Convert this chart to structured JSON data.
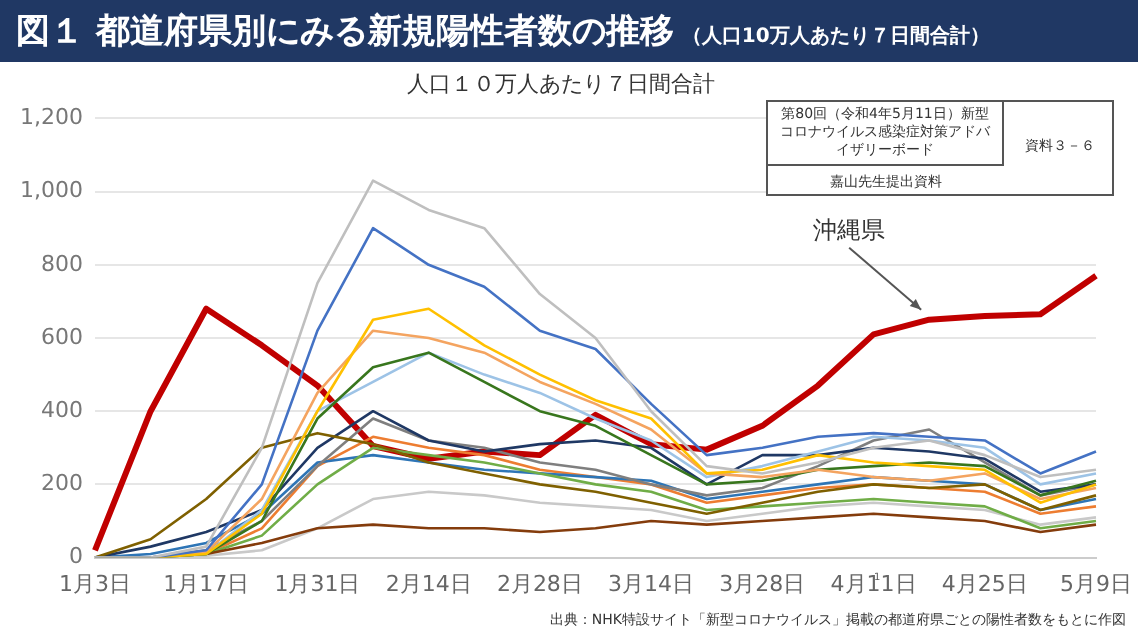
{
  "chart_data": {
    "type": "line",
    "title": "図１ 都道府県別にみる新規陽性者数の推移",
    "subtitle": "（人口10万人あたり７日間合計）",
    "annotations": [
      "人口１０万人あたり７日間合計",
      "第80回（令和4年5月11日）新型コロナウイルス感染症対策アドバイザリーボード",
      "資料３－６",
      "嘉山先生提出資料",
      "出典：NHK特設サイト「新型コロナウイルス」掲載の都道府県ごとの陽性者数をもとに作図",
      "1"
    ],
    "categories": [
      "1月3日",
      null,
      "1月17日",
      null,
      "1月31日",
      null,
      "2月14日",
      null,
      "2月28日",
      null,
      "3月14日",
      null,
      "3月28日",
      null,
      "4月11日",
      null,
      "4月25日",
      null,
      "5月9日"
    ],
    "ylim": [
      0,
      1200
    ],
    "yticks": [
      0,
      200,
      400,
      600,
      800,
      {
        "value": 1000,
        "label": "1,000"
      },
      {
        "value": 1200,
        "label": "1,200"
      }
    ],
    "grid": "y",
    "legend": false,
    "marker": "none",
    "line_style": "solid",
    "series": [
      {
        "color": "#bfbfbf",
        "values": [
          0,
          0,
          30,
          300,
          750,
          1030,
          950,
          900,
          720,
          600,
          400,
          250,
          230,
          260,
          300,
          320,
          280,
          220,
          240
        ]
      },
      {
        "color": "#4472c4",
        "values": [
          0,
          0,
          20,
          200,
          620,
          900,
          800,
          740,
          620,
          570,
          420,
          280,
          300,
          330,
          340,
          330,
          320,
          230,
          290
        ]
      },
      {
        "color": "#ffc000",
        "values": [
          0,
          0,
          10,
          120,
          400,
          650,
          680,
          580,
          500,
          430,
          380,
          230,
          240,
          280,
          260,
          250,
          240,
          150,
          200
        ]
      },
      {
        "color": "#f4a460",
        "values": [
          0,
          0,
          15,
          160,
          450,
          620,
          600,
          560,
          480,
          420,
          350,
          230,
          220,
          240,
          220,
          210,
          230,
          160,
          190
        ]
      },
      {
        "color": "#38761d",
        "values": [
          0,
          0,
          10,
          100,
          380,
          520,
          560,
          480,
          400,
          360,
          280,
          200,
          210,
          240,
          250,
          260,
          250,
          170,
          210
        ]
      },
      {
        "color": "#9dc3e6",
        "values": [
          0,
          0,
          10,
          130,
          400,
          480,
          560,
          500,
          450,
          380,
          320,
          220,
          250,
          290,
          330,
          320,
          300,
          200,
          230
        ]
      },
      {
        "color": "#7f6000",
        "values": [
          0,
          50,
          160,
          300,
          340,
          310,
          260,
          230,
          200,
          180,
          150,
          120,
          150,
          180,
          200,
          190,
          200,
          130,
          170
        ]
      },
      {
        "color": "#1f3864",
        "values": [
          0,
          30,
          70,
          130,
          300,
          400,
          320,
          290,
          310,
          320,
          300,
          200,
          280,
          280,
          300,
          290,
          270,
          180,
          200
        ]
      },
      {
        "color": "#7f7f7f",
        "values": [
          0,
          0,
          20,
          100,
          250,
          380,
          320,
          300,
          260,
          240,
          200,
          170,
          190,
          250,
          320,
          350,
          260,
          170,
          200
        ]
      },
      {
        "color": "#843c0c",
        "values": [
          0,
          0,
          10,
          40,
          80,
          90,
          80,
          80,
          70,
          80,
          100,
          90,
          100,
          110,
          120,
          110,
          100,
          70,
          90
        ]
      },
      {
        "color": "#70ad47",
        "values": [
          0,
          0,
          10,
          60,
          200,
          300,
          280,
          260,
          230,
          200,
          180,
          130,
          140,
          150,
          160,
          150,
          140,
          80,
          100
        ]
      },
      {
        "color": "#2e75b6",
        "values": [
          0,
          10,
          40,
          120,
          260,
          280,
          260,
          240,
          230,
          220,
          210,
          160,
          180,
          200,
          220,
          210,
          200,
          130,
          160
        ]
      },
      {
        "color": "#c9c9c9",
        "values": [
          0,
          0,
          5,
          20,
          80,
          160,
          180,
          170,
          150,
          140,
          130,
          100,
          120,
          140,
          150,
          140,
          130,
          90,
          110
        ]
      },
      {
        "color": "#ed7d31",
        "values": [
          0,
          0,
          10,
          80,
          250,
          330,
          300,
          280,
          240,
          220,
          200,
          150,
          170,
          190,
          200,
          190,
          180,
          120,
          140
        ]
      },
      {
        "name": "沖縄県",
        "color": "#c00000",
        "values": [
          20,
          400,
          680,
          580,
          470,
          305,
          270,
          290,
          280,
          390,
          310,
          295,
          360,
          470,
          610,
          650,
          660,
          665,
          770
        ]
      }
    ]
  }
}
